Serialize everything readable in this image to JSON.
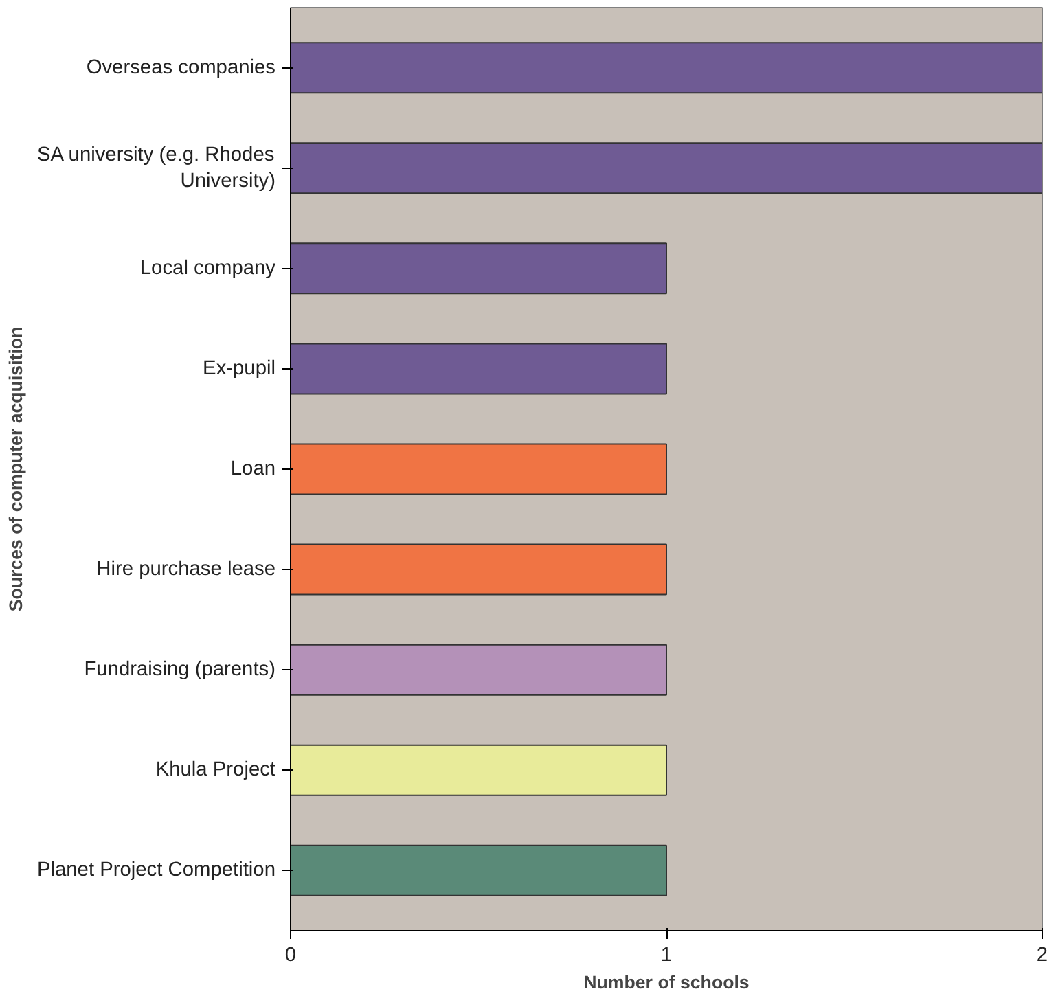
{
  "chart_data": {
    "type": "bar",
    "orientation": "horizontal",
    "xlabel": "Number of schools",
    "ylabel": "Sources of computer acquisition",
    "categories": [
      "Overseas companies",
      "SA university (e.g. Rhodes University)",
      "Local company",
      "Ex-pupil",
      "Loan",
      "Hire purchase lease",
      "Fundraising (parents)",
      "Khula Project",
      "Planet Project Competition"
    ],
    "values": [
      2,
      2,
      1,
      1,
      1,
      1,
      1,
      1,
      1
    ],
    "colors": [
      "#6f5b94",
      "#6f5b94",
      "#6f5b94",
      "#6f5b94",
      "#f07444",
      "#f07444",
      "#b491b8",
      "#e8eb9a",
      "#5a8a78"
    ],
    "xlim": [
      0,
      2
    ],
    "xticks": [
      0,
      1,
      2
    ],
    "grid": false
  }
}
